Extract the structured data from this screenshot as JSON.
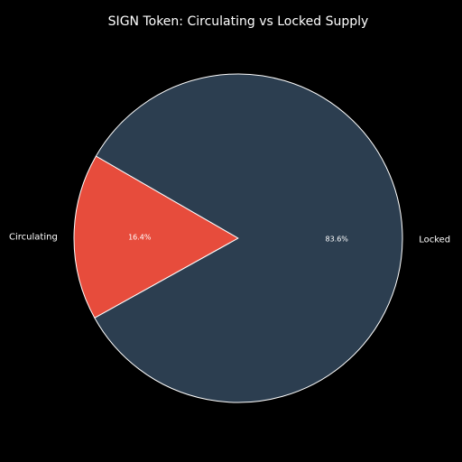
{
  "chart_data": {
    "type": "pie",
    "title": "SIGN Token: Circulating vs Locked Supply",
    "start_angle_deg": 150,
    "direction": "counterclockwise",
    "slices": [
      {
        "label": "Circulating",
        "value": 16.4,
        "percent_label": "16.4%",
        "color": "#e74c3c"
      },
      {
        "label": "Locked",
        "value": 83.6,
        "percent_label": "83.6%",
        "color": "#2c3e50"
      }
    ],
    "edge_color": "#ffffff",
    "background": "#000000"
  }
}
